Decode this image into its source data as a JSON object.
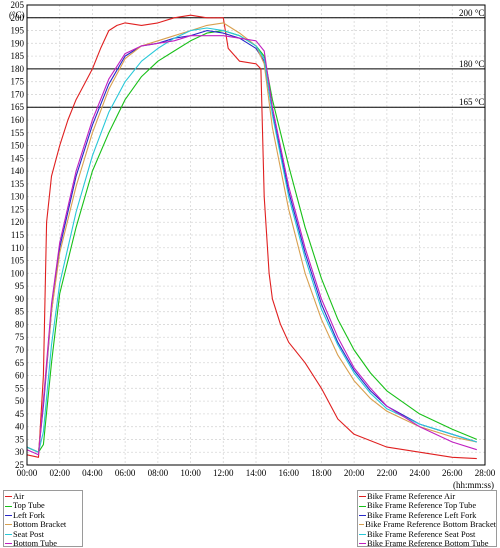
{
  "chart_data": {
    "type": "line",
    "ylabel": "(°C)",
    "xlabel": "(hh:mm:ss)",
    "ylim": [
      25,
      205
    ],
    "xlim": [
      0,
      28
    ],
    "yticks": [
      25,
      30,
      35,
      40,
      45,
      50,
      55,
      60,
      65,
      70,
      75,
      80,
      85,
      90,
      95,
      100,
      105,
      110,
      115,
      120,
      125,
      130,
      135,
      140,
      145,
      150,
      155,
      160,
      165,
      170,
      175,
      180,
      185,
      190,
      195,
      200,
      205
    ],
    "xticks": [
      0,
      2,
      4,
      6,
      8,
      10,
      12,
      14,
      16,
      18,
      20,
      22,
      24,
      26,
      28
    ],
    "xtick_labels": [
      "00:00",
      "02:00",
      "04:00",
      "06:00",
      "08:00",
      "10:00",
      "12:00",
      "14:00",
      "16:00",
      "18:00",
      "20:00",
      "22:00",
      "24:00",
      "26:00",
      "28:00"
    ],
    "grid": true,
    "reference_lines": [
      {
        "value": 200,
        "label": "200 °C"
      },
      {
        "value": 180,
        "label": "180 °C"
      },
      {
        "value": 165,
        "label": "165 °C"
      }
    ],
    "series": [
      {
        "name": "Air",
        "color": "#e02020",
        "x": [
          0,
          0.7,
          1.0,
          1.2,
          1.5,
          2.0,
          2.5,
          3.0,
          3.5,
          4.0,
          4.5,
          5.0,
          5.5,
          6.0,
          7.0,
          8.0,
          9.0,
          10.0,
          11.0,
          12.0,
          12.3,
          13.0,
          14.0,
          14.3,
          14.5,
          14.8,
          15.0,
          15.5,
          16.0,
          17.0,
          18.0,
          19.0,
          20.0,
          22.0,
          24.0,
          26.0,
          27.5
        ],
        "y": [
          29,
          28,
          60,
          120,
          138,
          150,
          160,
          168,
          174,
          180,
          188,
          195,
          197,
          198,
          197,
          198,
          200,
          201,
          200,
          200,
          188,
          183,
          182,
          180,
          130,
          100,
          90,
          80,
          73,
          65,
          55,
          43,
          37,
          32,
          30,
          28,
          27.5
        ]
      },
      {
        "name": "Top Tube",
        "color": "#18c018",
        "x": [
          0,
          0.7,
          1.0,
          1.5,
          2.0,
          3.0,
          4.0,
          5.0,
          6.0,
          7.0,
          8.0,
          9.0,
          10.0,
          11.0,
          12.0,
          13.0,
          14.0,
          14.5,
          15.0,
          16.0,
          17.0,
          18.0,
          19.0,
          20.0,
          21.0,
          22.0,
          24.0,
          26.0,
          27.5
        ],
        "y": [
          32,
          30,
          33,
          65,
          92,
          118,
          140,
          155,
          168,
          177,
          183,
          187,
          191,
          194,
          195,
          193,
          189,
          185,
          168,
          142,
          118,
          98,
          82,
          70,
          61,
          54,
          45,
          39,
          35
        ]
      },
      {
        "name": "Left Fork",
        "color": "#2828c8",
        "x": [
          0,
          0.7,
          1.0,
          1.5,
          2.0,
          3.0,
          4.0,
          5.0,
          6.0,
          7.0,
          8.0,
          9.0,
          10.0,
          11.0,
          12.0,
          13.0,
          14.0,
          14.5,
          15.0,
          16.0,
          17.0,
          18.0,
          19.0,
          20.0,
          21.0,
          22.0,
          24.0,
          26.0,
          27.5
        ],
        "y": [
          32,
          30,
          48,
          85,
          110,
          138,
          158,
          174,
          185,
          189,
          190,
          192,
          193,
          195,
          194,
          192,
          188,
          183,
          163,
          132,
          108,
          88,
          73,
          62,
          54,
          48,
          41,
          37,
          34
        ]
      },
      {
        "name": "Bottom Bracket",
        "color": "#d8a050",
        "x": [
          0,
          0.7,
          1.0,
          1.5,
          2.0,
          3.0,
          4.0,
          5.0,
          6.0,
          7.0,
          8.0,
          9.0,
          10.0,
          11.0,
          12.0,
          13.0,
          14.0,
          14.5,
          15.0,
          16.0,
          17.0,
          18.0,
          19.0,
          20.0,
          21.0,
          22.0,
          24.0,
          26.0,
          27.5
        ],
        "y": [
          32,
          30,
          50,
          85,
          108,
          134,
          155,
          172,
          184,
          189,
          191,
          193,
          195,
          197,
          198,
          194,
          189,
          182,
          157,
          125,
          100,
          82,
          68,
          58,
          51,
          46,
          40,
          36,
          34
        ]
      },
      {
        "name": "Seat Post",
        "color": "#28c8d8",
        "x": [
          0,
          0.7,
          1.0,
          1.5,
          2.0,
          3.0,
          4.0,
          5.0,
          6.0,
          7.0,
          8.0,
          9.0,
          10.0,
          11.0,
          12.0,
          13.0,
          14.0,
          14.5,
          15.0,
          16.0,
          17.0,
          18.0,
          19.0,
          20.0,
          21.0,
          22.0,
          24.0,
          26.0,
          27.5
        ],
        "y": [
          32,
          30,
          38,
          72,
          96,
          124,
          146,
          163,
          175,
          183,
          188,
          192,
          195,
          196,
          195,
          193,
          189,
          184,
          162,
          130,
          106,
          86,
          72,
          61,
          53,
          47,
          41,
          37,
          34
        ]
      },
      {
        "name": "Bottom Tube",
        "color": "#c020c0",
        "x": [
          0,
          0.7,
          1.0,
          1.5,
          2.0,
          3.0,
          4.0,
          5.0,
          6.0,
          7.0,
          8.0,
          9.0,
          10.0,
          11.0,
          12.0,
          13.0,
          14.0,
          14.5,
          15.0,
          16.0,
          17.0,
          18.0,
          19.0,
          20.0,
          21.0,
          22.0,
          24.0,
          26.0,
          27.5
        ],
        "y": [
          31,
          29,
          50,
          88,
          112,
          140,
          160,
          176,
          186,
          189,
          190,
          191,
          193,
          193,
          193,
          192,
          191,
          187,
          165,
          134,
          110,
          90,
          75,
          63,
          55,
          48,
          40,
          34,
          31
        ]
      }
    ],
    "legend_left": [
      "Air",
      "Top Tube",
      "Left Fork",
      "Bottom Bracket",
      "Seat Post",
      "Bottom Tube"
    ],
    "legend_right": [
      "Bike Frame Reference Air",
      "Bike Frame Reference Top Tube",
      "Bike Frame Reference Left Fork",
      "Bike Frame Reference Bottom Bracket",
      "Bike Frame Reference Seat Post",
      "Bike Frame Reference Bottom Tube"
    ]
  }
}
